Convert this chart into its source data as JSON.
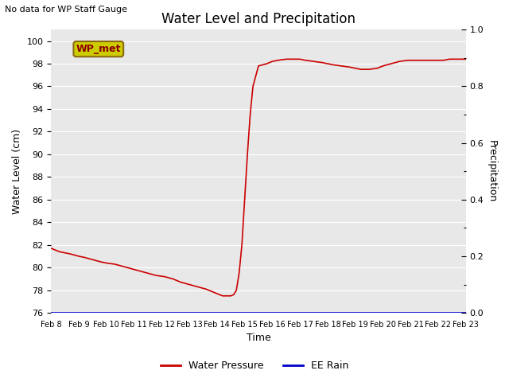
{
  "title": "Water Level and Precipitation",
  "top_left_text": "No data for WP Staff Gauge",
  "xlabel": "Time",
  "ylabel_left": "Water Level (cm)",
  "ylabel_right": "Precipitation",
  "legend_labels": [
    "Water Pressure",
    "EE Rain"
  ],
  "legend_colors": [
    "#cc0000",
    "#0000cc"
  ],
  "annotation_box_text": "WP_met",
  "annotation_box_color": "#cccc00",
  "annotation_box_text_color": "#8b0000",
  "ylim_left": [
    76,
    101
  ],
  "ylim_right": [
    0.0,
    1.0
  ],
  "yticks_left": [
    76,
    78,
    80,
    82,
    84,
    86,
    88,
    90,
    92,
    94,
    96,
    98,
    100
  ],
  "yticks_right_major": [
    0.0,
    0.2,
    0.4,
    0.6,
    0.8,
    1.0
  ],
  "yticks_right_minor": [
    0.1,
    0.3,
    0.5,
    0.7,
    0.9
  ],
  "xtick_labels": [
    "Feb 8",
    "Feb 9",
    "Feb 10",
    "Feb 11",
    "Feb 12",
    "Feb 13",
    "Feb 14",
    "Feb 15",
    "Feb 16",
    "Feb 17",
    "Feb 18",
    "Feb 19",
    "Feb 20",
    "Feb 21",
    "Feb 22",
    "Feb 23"
  ],
  "background_color": "#e8e8e8",
  "line_color": "#cc0000",
  "rain_line_color": "#0000cc",
  "water_level_data": {
    "x": [
      0,
      0.1,
      0.2,
      0.3,
      0.5,
      0.7,
      1.0,
      1.2,
      1.5,
      1.8,
      2.0,
      2.3,
      2.6,
      2.9,
      3.2,
      3.5,
      3.8,
      4.1,
      4.4,
      4.7,
      5.0,
      5.3,
      5.6,
      5.9,
      6.0,
      6.1,
      6.2,
      6.3,
      6.4,
      6.5,
      6.6,
      6.7,
      6.8,
      6.9,
      7.0,
      7.1,
      7.2,
      7.3,
      7.5,
      7.8,
      8.0,
      8.2,
      8.5,
      8.8,
      9.0,
      9.2,
      9.5,
      9.8,
      10.0,
      10.2,
      10.5,
      10.8,
      11.0,
      11.2,
      11.5,
      11.8,
      12.0,
      12.3,
      12.6,
      12.9,
      13.0,
      13.2,
      13.5,
      13.8,
      14.0,
      14.2,
      14.4,
      14.6,
      14.8,
      15.0
    ],
    "y": [
      81.7,
      81.6,
      81.5,
      81.4,
      81.3,
      81.2,
      81.0,
      80.9,
      80.7,
      80.5,
      80.4,
      80.3,
      80.1,
      79.9,
      79.7,
      79.5,
      79.3,
      79.2,
      79.0,
      78.7,
      78.5,
      78.3,
      78.1,
      77.8,
      77.7,
      77.6,
      77.5,
      77.5,
      77.5,
      77.5,
      77.6,
      78.0,
      79.5,
      82.0,
      86.0,
      90.0,
      93.5,
      96.0,
      97.8,
      98.0,
      98.2,
      98.3,
      98.4,
      98.4,
      98.4,
      98.3,
      98.2,
      98.1,
      98.0,
      97.9,
      97.8,
      97.7,
      97.6,
      97.5,
      97.5,
      97.6,
      97.8,
      98.0,
      98.2,
      98.3,
      98.3,
      98.3,
      98.3,
      98.3,
      98.3,
      98.3,
      98.4,
      98.4,
      98.4,
      98.4
    ]
  }
}
